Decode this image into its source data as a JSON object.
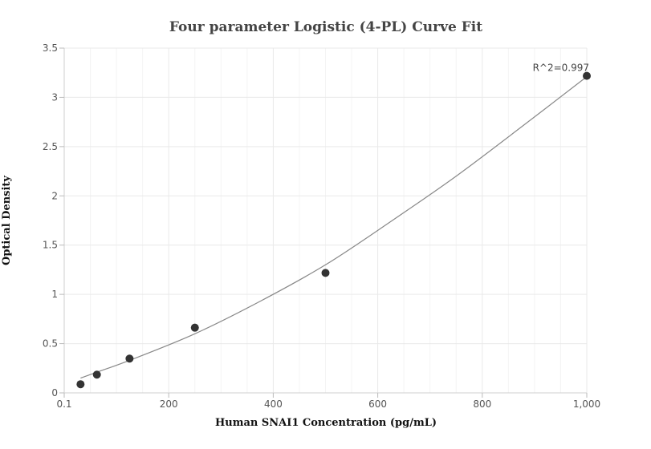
{
  "chart_data": {
    "type": "scatter",
    "title": "Four parameter Logistic (4-PL) Curve Fit",
    "xlabel": "Human SNAI1 Concentration (pg/mL)",
    "ylabel": "Optical Density",
    "xlim": [
      0.1,
      1000
    ],
    "ylim": [
      0,
      3.5
    ],
    "x_ticks": [
      0.1,
      200,
      400,
      600,
      800,
      1000
    ],
    "x_tick_labels": [
      "0.1",
      "200",
      "400",
      "600",
      "800",
      "1,000"
    ],
    "y_ticks": [
      0,
      0.5,
      1,
      1.5,
      2,
      2.5,
      3,
      3.5
    ],
    "y_tick_labels": [
      "0",
      "0.5",
      "1",
      "1.5",
      "2",
      "2.5",
      "3",
      "3.5"
    ],
    "grid": true,
    "series": [
      {
        "points": [
          {
            "x": 31.25,
            "y": 0.088
          },
          {
            "x": 62.5,
            "y": 0.185
          },
          {
            "x": 125,
            "y": 0.348
          },
          {
            "x": 250,
            "y": 0.662
          },
          {
            "x": 500,
            "y": 1.218
          },
          {
            "x": 1000,
            "y": 3.218
          }
        ],
        "color": "#333333"
      }
    ],
    "fit_curve": {
      "x": [
        31.25,
        62.5,
        125,
        250,
        375,
        500,
        625,
        750,
        875,
        1000
      ],
      "y": [
        0.15,
        0.21,
        0.33,
        0.6,
        0.93,
        1.3,
        1.74,
        2.2,
        2.7,
        3.21
      ],
      "color": "#888888"
    },
    "annotations": [
      {
        "text": "R^2=0.997",
        "x": 1000,
        "y": 3.218
      }
    ]
  }
}
